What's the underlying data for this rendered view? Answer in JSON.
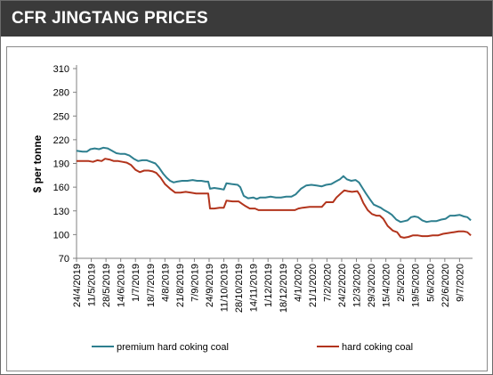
{
  "header": {
    "title": "CFR JINGTANG PRICES"
  },
  "chart_data": {
    "type": "line",
    "title": "",
    "xlabel": "",
    "ylabel": "$ per tonne",
    "ylim": [
      70,
      310
    ],
    "yticks": [
      70,
      100,
      130,
      160,
      190,
      220,
      250,
      280,
      310
    ],
    "xlim": [
      "2019-04-24",
      "2020-07-24"
    ],
    "xtick_labels": [
      "24/4/2019",
      "11/5/2019",
      "28/5/2019",
      "14/6/2019",
      "1/7/2019",
      "18/7/2019",
      "4/8/2019",
      "21/8/2019",
      "7/9/2019",
      "24/9/2019",
      "11/10/2019",
      "28/10/2019",
      "14/11/2019",
      "1/12/2019",
      "18/12/2019",
      "4/1/2020",
      "21/1/2020",
      "7/2/2020",
      "24/2/2020",
      "12/3/2020",
      "29/3/2020",
      "15/4/2020",
      "2/5/2020",
      "19/5/2020",
      "5/6/2020",
      "22/6/2020",
      "9/7/2020"
    ],
    "xtick_dates": [
      "2019-04-24",
      "2019-05-11",
      "2019-05-28",
      "2019-06-14",
      "2019-07-01",
      "2019-07-18",
      "2019-08-04",
      "2019-08-21",
      "2019-09-07",
      "2019-09-24",
      "2019-10-11",
      "2019-10-28",
      "2019-11-14",
      "2019-12-01",
      "2019-12-18",
      "2020-01-04",
      "2020-01-21",
      "2020-02-07",
      "2020-02-24",
      "2020-03-12",
      "2020-03-29",
      "2020-04-15",
      "2020-05-02",
      "2020-05-19",
      "2020-06-05",
      "2020-06-22",
      "2020-07-09"
    ],
    "grid": false,
    "legend_position": "bottom",
    "series": [
      {
        "name": "premium hard coking coal",
        "color": "#2e7f8f",
        "points": [
          [
            "2019-04-24",
            206
          ],
          [
            "2019-05-01",
            205
          ],
          [
            "2019-05-06",
            205
          ],
          [
            "2019-05-10",
            208
          ],
          [
            "2019-05-15",
            209
          ],
          [
            "2019-05-20",
            208
          ],
          [
            "2019-05-25",
            210
          ],
          [
            "2019-05-30",
            209
          ],
          [
            "2019-06-04",
            206
          ],
          [
            "2019-06-09",
            203
          ],
          [
            "2019-06-14",
            202
          ],
          [
            "2019-06-19",
            202
          ],
          [
            "2019-06-24",
            200
          ],
          [
            "2019-06-29",
            196
          ],
          [
            "2019-07-04",
            193
          ],
          [
            "2019-07-09",
            194
          ],
          [
            "2019-07-14",
            194
          ],
          [
            "2019-07-19",
            192
          ],
          [
            "2019-07-24",
            190
          ],
          [
            "2019-07-28",
            185
          ],
          [
            "2019-08-02",
            177
          ],
          [
            "2019-08-06",
            172
          ],
          [
            "2019-08-10",
            168
          ],
          [
            "2019-08-14",
            166
          ],
          [
            "2019-08-18",
            167
          ],
          [
            "2019-08-24",
            168
          ],
          [
            "2019-08-30",
            168
          ],
          [
            "2019-09-05",
            169
          ],
          [
            "2019-09-10",
            168
          ],
          [
            "2019-09-15",
            168
          ],
          [
            "2019-09-20",
            167
          ],
          [
            "2019-09-23",
            167
          ],
          [
            "2019-09-25",
            158
          ],
          [
            "2019-09-30",
            159
          ],
          [
            "2019-10-06",
            158
          ],
          [
            "2019-10-11",
            157
          ],
          [
            "2019-10-14",
            165
          ],
          [
            "2019-10-20",
            164
          ],
          [
            "2019-10-27",
            163
          ],
          [
            "2019-10-30",
            160
          ],
          [
            "2019-11-03",
            149
          ],
          [
            "2019-11-08",
            146
          ],
          [
            "2019-11-14",
            147
          ],
          [
            "2019-11-18",
            145
          ],
          [
            "2019-11-22",
            147
          ],
          [
            "2019-11-28",
            147
          ],
          [
            "2019-12-04",
            148
          ],
          [
            "2019-12-10",
            147
          ],
          [
            "2019-12-16",
            147
          ],
          [
            "2019-12-22",
            148
          ],
          [
            "2019-12-28",
            148
          ],
          [
            "2020-01-02",
            151
          ],
          [
            "2020-01-08",
            158
          ],
          [
            "2020-01-14",
            162
          ],
          [
            "2020-01-20",
            163
          ],
          [
            "2020-01-26",
            162
          ],
          [
            "2020-02-01",
            161
          ],
          [
            "2020-02-06",
            163
          ],
          [
            "2020-02-12",
            164
          ],
          [
            "2020-02-17",
            167
          ],
          [
            "2020-02-22",
            170
          ],
          [
            "2020-02-26",
            174
          ],
          [
            "2020-03-01",
            170
          ],
          [
            "2020-03-06",
            168
          ],
          [
            "2020-03-11",
            169
          ],
          [
            "2020-03-15",
            166
          ],
          [
            "2020-03-19",
            159
          ],
          [
            "2020-03-23",
            152
          ],
          [
            "2020-03-28",
            144
          ],
          [
            "2020-04-01",
            138
          ],
          [
            "2020-04-05",
            136
          ],
          [
            "2020-04-09",
            134
          ],
          [
            "2020-04-13",
            131
          ],
          [
            "2020-04-18",
            128
          ],
          [
            "2020-04-22",
            125
          ],
          [
            "2020-04-27",
            119
          ],
          [
            "2020-05-02",
            116
          ],
          [
            "2020-05-06",
            117
          ],
          [
            "2020-05-10",
            118
          ],
          [
            "2020-05-14",
            122
          ],
          [
            "2020-05-18",
            123
          ],
          [
            "2020-05-22",
            122
          ],
          [
            "2020-05-27",
            118
          ],
          [
            "2020-06-01",
            116
          ],
          [
            "2020-06-06",
            117
          ],
          [
            "2020-06-12",
            117
          ],
          [
            "2020-06-18",
            119
          ],
          [
            "2020-06-23",
            120
          ],
          [
            "2020-06-28",
            124
          ],
          [
            "2020-07-03",
            124
          ],
          [
            "2020-07-09",
            125
          ],
          [
            "2020-07-14",
            123
          ],
          [
            "2020-07-18",
            122
          ],
          [
            "2020-07-22",
            118
          ]
        ]
      },
      {
        "name": "hard coking coal",
        "color": "#b2341c",
        "points": [
          [
            "2019-04-24",
            193
          ],
          [
            "2019-05-01",
            193
          ],
          [
            "2019-05-08",
            193
          ],
          [
            "2019-05-13",
            192
          ],
          [
            "2019-05-18",
            194
          ],
          [
            "2019-05-23",
            193
          ],
          [
            "2019-05-27",
            196
          ],
          [
            "2019-06-01",
            195
          ],
          [
            "2019-06-06",
            193
          ],
          [
            "2019-06-11",
            193
          ],
          [
            "2019-06-16",
            192
          ],
          [
            "2019-06-21",
            191
          ],
          [
            "2019-06-26",
            188
          ],
          [
            "2019-07-01",
            182
          ],
          [
            "2019-07-06",
            179
          ],
          [
            "2019-07-11",
            181
          ],
          [
            "2019-07-16",
            181
          ],
          [
            "2019-07-21",
            180
          ],
          [
            "2019-07-25",
            178
          ],
          [
            "2019-07-30",
            172
          ],
          [
            "2019-08-04",
            164
          ],
          [
            "2019-08-10",
            158
          ],
          [
            "2019-08-16",
            153
          ],
          [
            "2019-08-22",
            153
          ],
          [
            "2019-08-28",
            154
          ],
          [
            "2019-09-03",
            153
          ],
          [
            "2019-09-09",
            152
          ],
          [
            "2019-09-15",
            152
          ],
          [
            "2019-09-20",
            152
          ],
          [
            "2019-09-23",
            152
          ],
          [
            "2019-09-25",
            133
          ],
          [
            "2019-09-30",
            133
          ],
          [
            "2019-10-06",
            134
          ],
          [
            "2019-10-11",
            134
          ],
          [
            "2019-10-14",
            143
          ],
          [
            "2019-10-21",
            142
          ],
          [
            "2019-10-28",
            142
          ],
          [
            "2019-11-01",
            139
          ],
          [
            "2019-11-05",
            136
          ],
          [
            "2019-11-10",
            133
          ],
          [
            "2019-11-16",
            133
          ],
          [
            "2019-11-20",
            131
          ],
          [
            "2019-11-27",
            131
          ],
          [
            "2019-12-04",
            131
          ],
          [
            "2019-12-12",
            131
          ],
          [
            "2019-12-20",
            131
          ],
          [
            "2019-12-27",
            131
          ],
          [
            "2020-01-01",
            131
          ],
          [
            "2020-01-05",
            133
          ],
          [
            "2020-01-10",
            134
          ],
          [
            "2020-01-18",
            135
          ],
          [
            "2020-01-25",
            135
          ],
          [
            "2020-02-01",
            135
          ],
          [
            "2020-02-06",
            141
          ],
          [
            "2020-02-14",
            141
          ],
          [
            "2020-02-18",
            147
          ],
          [
            "2020-02-23",
            152
          ],
          [
            "2020-02-27",
            156
          ],
          [
            "2020-03-02",
            155
          ],
          [
            "2020-03-07",
            154
          ],
          [
            "2020-03-13",
            155
          ],
          [
            "2020-03-16",
            150
          ],
          [
            "2020-03-20",
            140
          ],
          [
            "2020-03-25",
            131
          ],
          [
            "2020-03-30",
            126
          ],
          [
            "2020-04-04",
            124
          ],
          [
            "2020-04-08",
            124
          ],
          [
            "2020-04-12",
            120
          ],
          [
            "2020-04-17",
            111
          ],
          [
            "2020-04-23",
            105
          ],
          [
            "2020-04-28",
            103
          ],
          [
            "2020-05-02",
            97
          ],
          [
            "2020-05-06",
            96
          ],
          [
            "2020-05-11",
            97
          ],
          [
            "2020-05-16",
            99
          ],
          [
            "2020-05-22",
            99
          ],
          [
            "2020-05-27",
            98
          ],
          [
            "2020-06-02",
            98
          ],
          [
            "2020-06-08",
            99
          ],
          [
            "2020-06-14",
            99
          ],
          [
            "2020-06-20",
            101
          ],
          [
            "2020-06-26",
            102
          ],
          [
            "2020-07-02",
            103
          ],
          [
            "2020-07-08",
            104
          ],
          [
            "2020-07-14",
            104
          ],
          [
            "2020-07-18",
            103
          ],
          [
            "2020-07-22",
            99
          ]
        ]
      }
    ]
  }
}
